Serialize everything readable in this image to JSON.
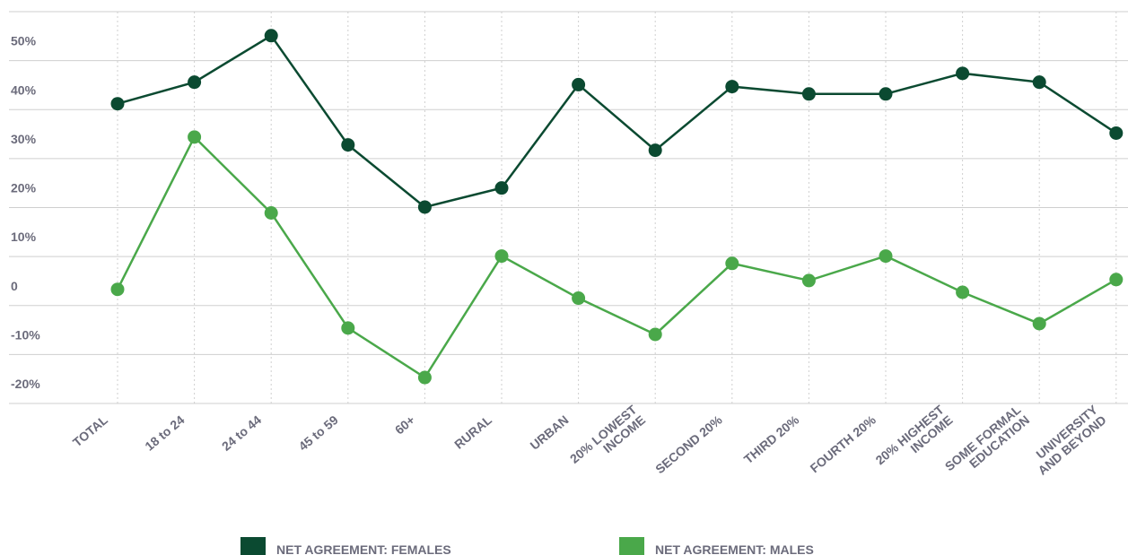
{
  "chart_data": {
    "type": "line",
    "categories": [
      "TOTAL",
      "18 to 24",
      "24 to 44",
      "45 to 59",
      "60+",
      "RURAL",
      "URBAN",
      "20% LOWEST\nINCOME",
      "SECOND 20%",
      "THIRD 20%",
      "FOURTH 20%",
      "20% HIGHEST\nINCOME",
      "SOME FORMAL\nEDUCATION",
      "UNIVERSITY\nAND BEYOND"
    ],
    "series": [
      {
        "name": "NET AGREEMENT: FEMALES",
        "color": "#0b4a31",
        "values": [
          41.2,
          45.6,
          55.1,
          32.8,
          20.1,
          24.0,
          45.1,
          31.7,
          44.7,
          43.2,
          43.2,
          47.4,
          45.6,
          35.2
        ]
      },
      {
        "name": "NET AGREEMENT: MALES",
        "color": "#4aa84a",
        "values": [
          3.3,
          34.4,
          18.9,
          -4.6,
          -14.7,
          10.1,
          1.5,
          -5.9,
          8.6,
          5.1,
          10.1,
          2.7,
          -3.7,
          5.3
        ]
      }
    ],
    "ylim": [
      -20,
      60
    ],
    "yticks": [
      {
        "value": -20,
        "label": "-20%"
      },
      {
        "value": -10,
        "label": "-10%"
      },
      0,
      {
        "value": 10,
        "label": "10%"
      },
      {
        "value": 20,
        "label": "20%"
      },
      {
        "value": 30,
        "label": "30%"
      },
      {
        "value": 40,
        "label": "40%"
      },
      {
        "value": 50,
        "label": "50%"
      }
    ],
    "grid": true
  }
}
